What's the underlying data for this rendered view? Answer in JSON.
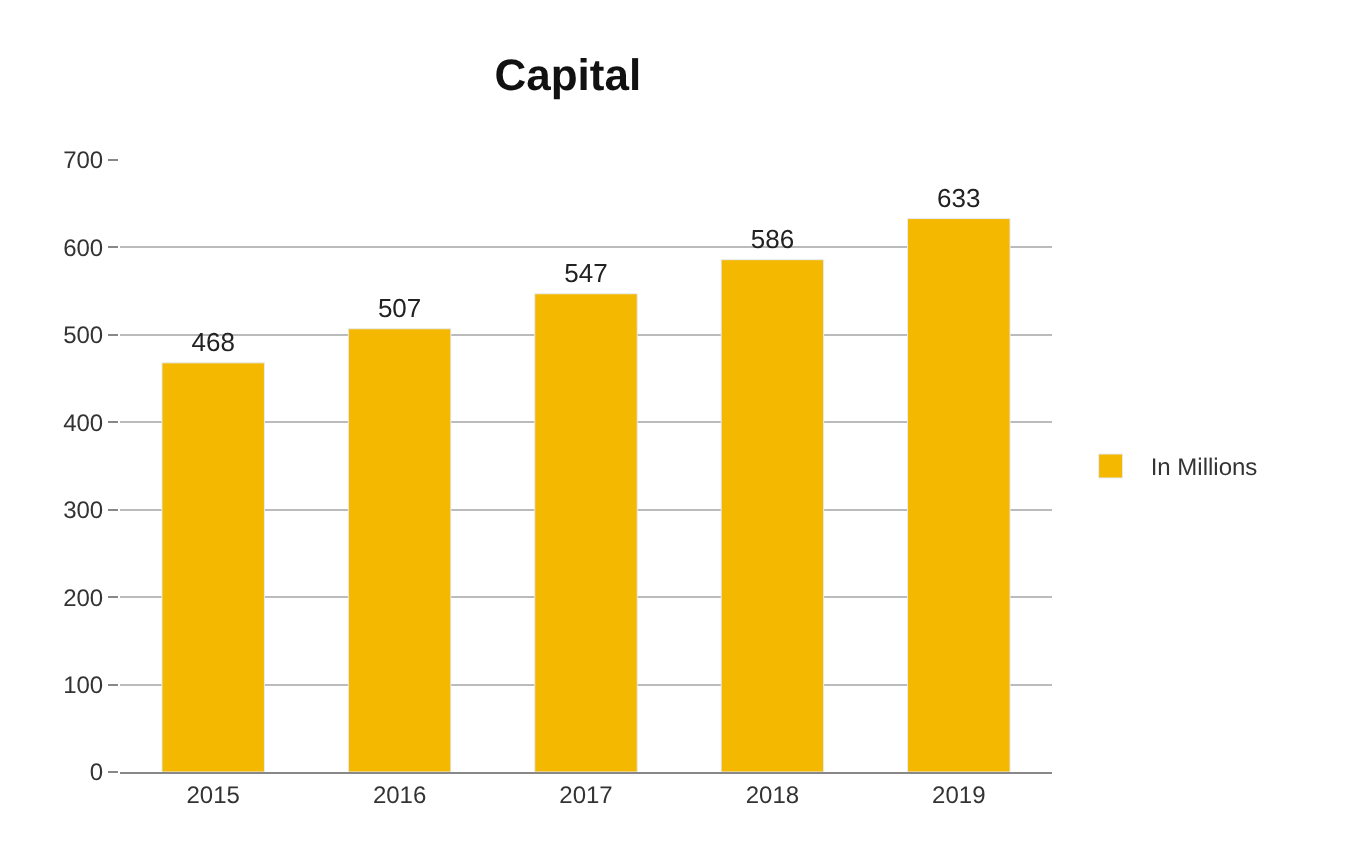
{
  "chart_data": {
    "type": "bar",
    "title": "Capital",
    "categories": [
      "2015",
      "2016",
      "2017",
      "2018",
      "2019"
    ],
    "series": [
      {
        "name": "In Millions",
        "color": "#f5b800",
        "values": [
          468,
          507,
          547,
          586,
          633
        ]
      }
    ],
    "ylim": [
      0,
      700
    ],
    "yticks": [
      0,
      100,
      200,
      300,
      400,
      500,
      600,
      700
    ],
    "grid": "y",
    "legend": "right",
    "data_labels": true
  }
}
